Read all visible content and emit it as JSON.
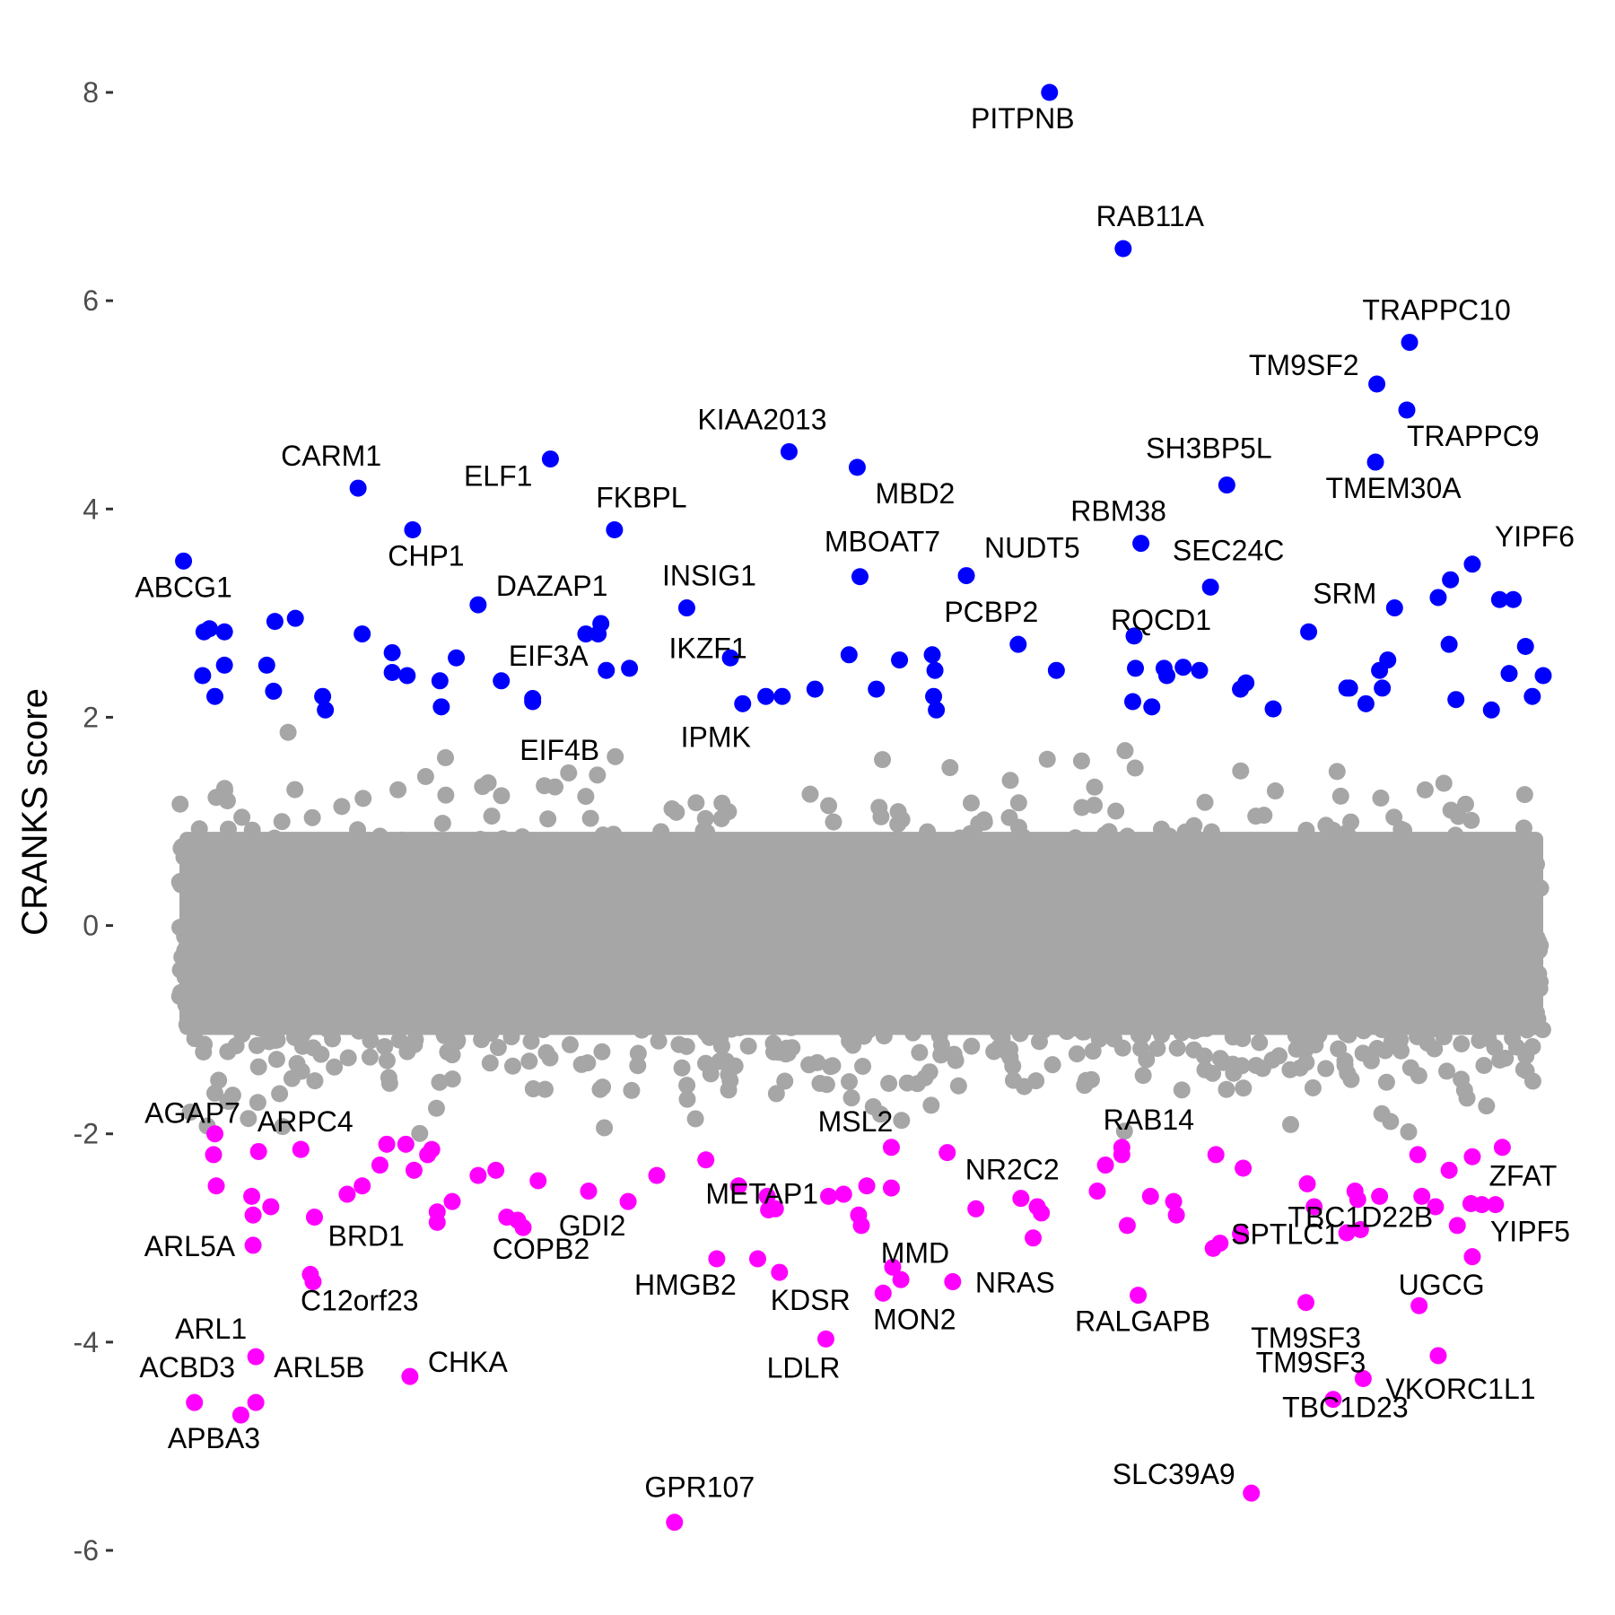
{
  "chart_data": {
    "type": "scatter",
    "ylabel": "CRANKS score",
    "xlabel": "",
    "ylim": [
      -6.3,
      8.4
    ],
    "xlim": [
      0,
      1000
    ],
    "y_ticks": [
      {
        "value": 8,
        "label": "8"
      },
      {
        "value": 6,
        "label": "6"
      },
      {
        "value": 4,
        "label": "4"
      },
      {
        "value": 2,
        "label": "2"
      },
      {
        "value": 0,
        "label": "0"
      },
      {
        "value": -2,
        "label": "-2"
      },
      {
        "value": -4,
        "label": "-4"
      },
      {
        "value": -6,
        "label": "-6"
      }
    ],
    "grid": false,
    "colors": {
      "background_points": "#a6a6a6",
      "positive_hits": "#0000ff",
      "negative_hits": "#ff00ff"
    },
    "labeled_points": [
      {
        "label": "PITPNB",
        "x": 638,
        "y": 8.0,
        "group": "positive"
      },
      {
        "label": "RAB11A",
        "x": 692,
        "y": 6.5,
        "group": "positive"
      },
      {
        "label": "TRAPPC10",
        "x": 902,
        "y": 5.6,
        "group": "positive"
      },
      {
        "label": "TM9SF2",
        "x": 878,
        "y": 5.2,
        "group": "positive"
      },
      {
        "label": "TRAPPC9",
        "x": 900,
        "y": 4.95,
        "group": "positive"
      },
      {
        "label": "TMEM30A",
        "x": 877,
        "y": 4.45,
        "group": "positive"
      },
      {
        "label": "SH3BP5L",
        "x": 768,
        "y": 4.23,
        "group": "positive"
      },
      {
        "label": "KIAA2013",
        "x": 447,
        "y": 4.55,
        "group": "positive"
      },
      {
        "label": "ELF1",
        "x": 272,
        "y": 4.48,
        "group": "positive"
      },
      {
        "label": "CARM1",
        "x": 131,
        "y": 4.2,
        "group": "positive"
      },
      {
        "label": "MBD2",
        "x": 497,
        "y": 4.4,
        "group": "positive"
      },
      {
        "label": "FKBPL",
        "x": 319,
        "y": 3.8,
        "group": "positive"
      },
      {
        "label": "CHP1",
        "x": 171,
        "y": 3.8,
        "group": "positive"
      },
      {
        "label": "RBM38",
        "x": 705,
        "y": 3.67,
        "group": "positive"
      },
      {
        "label": "ABCG1",
        "x": 3,
        "y": 3.5,
        "group": "positive"
      },
      {
        "label": "YIPF6",
        "x": 948,
        "y": 3.47,
        "group": "positive"
      },
      {
        "label": "NUDT5",
        "x": 577,
        "y": 3.36,
        "group": "positive"
      },
      {
        "label": "MBOAT7",
        "x": 499,
        "y": 3.35,
        "group": "positive"
      },
      {
        "label": "SEC24C",
        "x": 756,
        "y": 3.25,
        "group": "positive"
      },
      {
        "label": "DAZAP1",
        "x": 219,
        "y": 3.08,
        "group": "positive"
      },
      {
        "label": "INSIG1",
        "x": 372,
        "y": 3.05,
        "group": "positive"
      },
      {
        "label": "SRM",
        "x": 891,
        "y": 3.05,
        "group": "positive"
      },
      {
        "label": "PCBP2",
        "x": 615,
        "y": 2.7,
        "group": "positive"
      },
      {
        "label": "RQCD1",
        "x": 700,
        "y": 2.78,
        "group": "positive"
      },
      {
        "label": "IKZF1",
        "x": 404,
        "y": 2.57,
        "group": "positive"
      },
      {
        "label": "EIF3A",
        "x": 313,
        "y": 2.45,
        "group": "positive"
      },
      {
        "label": "EIF4B",
        "x": 259,
        "y": 2.15,
        "group": "positive"
      },
      {
        "label": "IPMK",
        "x": 413,
        "y": 2.13,
        "group": "positive"
      },
      {
        "label": "AGAP7",
        "x": 26,
        "y": -2.0,
        "group": "negative"
      },
      {
        "label": "ARPC4",
        "x": 89,
        "y": -2.15,
        "group": "negative"
      },
      {
        "label": "MSL2",
        "x": 522,
        "y": -2.13,
        "group": "negative"
      },
      {
        "label": "RAB14",
        "x": 691,
        "y": -2.13,
        "group": "negative"
      },
      {
        "label": "NR2C2",
        "x": 563,
        "y": -2.18,
        "group": "negative"
      },
      {
        "label": "ZFAT",
        "x": 947,
        "y": -2.67,
        "group": "negative"
      },
      {
        "label": "YIPF5",
        "x": 948,
        "y": -3.18,
        "group": "negative"
      },
      {
        "label": "TBC1D22B",
        "x": 866,
        "y": -2.92,
        "group": "negative"
      },
      {
        "label": "ARL5A",
        "x": 54,
        "y": -3.07,
        "group": "negative"
      },
      {
        "label": "BRD1",
        "x": 99,
        "y": -2.8,
        "group": "negative"
      },
      {
        "label": "GDI2",
        "x": 329,
        "y": -2.65,
        "group": "negative"
      },
      {
        "label": "METAP1",
        "x": 437,
        "y": -2.72,
        "group": "negative"
      },
      {
        "label": "MMD",
        "x": 523,
        "y": -3.28,
        "group": "negative"
      },
      {
        "label": "COPB2",
        "x": 252,
        "y": -2.9,
        "group": "negative"
      },
      {
        "label": "C12orf23",
        "x": 98,
        "y": -3.42,
        "group": "negative"
      },
      {
        "label": "HMGB2",
        "x": 394,
        "y": -3.2,
        "group": "negative"
      },
      {
        "label": "KDSR",
        "x": 440,
        "y": -3.33,
        "group": "negative"
      },
      {
        "label": "NRAS",
        "x": 567,
        "y": -3.42,
        "group": "negative"
      },
      {
        "label": "SPTLC1",
        "x": 758,
        "y": -3.1,
        "group": "negative"
      },
      {
        "label": "UGCG",
        "x": 909,
        "y": -3.65,
        "group": "negative"
      },
      {
        "label": "RALGAPB",
        "x": 703,
        "y": -3.55,
        "group": "negative"
      },
      {
        "label": "MON2",
        "x": 516,
        "y": -3.53,
        "group": "negative"
      },
      {
        "label": "TM9SF3",
        "x": 826,
        "y": -3.62,
        "group": "negative"
      },
      {
        "label": "ARL1",
        "x": 56,
        "y": -4.14,
        "group": "negative"
      },
      {
        "label": "LDLR",
        "x": 474,
        "y": -3.97,
        "group": "negative"
      },
      {
        "label": "ARL5B",
        "x": 56,
        "y": -4.58,
        "group": "negative"
      },
      {
        "label": "CHKA",
        "x": 169,
        "y": -4.33,
        "group": "negative"
      },
      {
        "label": "VKORC1L1",
        "x": 923,
        "y": -4.13,
        "group": "negative"
      },
      {
        "label": "ACBD3",
        "x": 11,
        "y": -4.58,
        "group": "negative"
      },
      {
        "label": "TBC1D23",
        "x": 868,
        "y": -4.35,
        "group": "negative"
      },
      {
        "label": "APBA3",
        "x": 45,
        "y": -4.7,
        "group": "negative"
      },
      {
        "label": "TM9SF3",
        "x": 846,
        "y": -4.55,
        "group": "negative"
      },
      {
        "label": "SLC39A9",
        "x": 786,
        "y": -5.45,
        "group": "negative"
      },
      {
        "label": "GPR107",
        "x": 363,
        "y": -5.73,
        "group": "negative"
      }
    ],
    "unlabeled_hits": {
      "positive": [
        [
          18,
          2.82
        ],
        [
          22,
          2.85
        ],
        [
          17,
          2.4
        ],
        [
          26,
          2.2
        ],
        [
          33,
          2.5
        ],
        [
          33,
          2.82
        ],
        [
          64,
          2.5
        ],
        [
          69,
          2.25
        ],
        [
          70,
          2.92
        ],
        [
          85,
          2.95
        ],
        [
          105,
          2.2
        ],
        [
          107,
          2.07
        ],
        [
          134,
          2.8
        ],
        [
          156,
          2.62
        ],
        [
          156,
          2.43
        ],
        [
          167,
          2.4
        ],
        [
          191,
          2.35
        ],
        [
          192,
          2.1
        ],
        [
          203,
          2.57
        ],
        [
          236,
          2.35
        ],
        [
          259,
          2.18
        ],
        [
          298,
          2.8
        ],
        [
          309,
          2.9
        ],
        [
          307,
          2.8
        ],
        [
          330,
          2.47
        ],
        [
          430,
          2.2
        ],
        [
          442,
          2.2
        ],
        [
          466,
          2.27
        ],
        [
          491,
          2.6
        ],
        [
          511,
          2.27
        ],
        [
          528,
          2.55
        ],
        [
          553,
          2.2
        ],
        [
          552,
          2.6
        ],
        [
          554,
          2.45
        ],
        [
          555,
          2.07
        ],
        [
          643,
          2.45
        ],
        [
          699,
          2.15
        ],
        [
          701,
          2.47
        ],
        [
          713,
          2.1
        ],
        [
          722,
          2.47
        ],
        [
          724,
          2.4
        ],
        [
          736,
          2.48
        ],
        [
          748,
          2.45
        ],
        [
          778,
          2.27
        ],
        [
          782,
          2.33
        ],
        [
          802,
          2.08
        ],
        [
          828,
          2.82
        ],
        [
          856,
          2.28
        ],
        [
          858,
          2.28
        ],
        [
          870,
          2.13
        ],
        [
          880,
          2.45
        ],
        [
          886,
          2.55
        ],
        [
          882,
          2.28
        ],
        [
          923,
          3.15
        ],
        [
          932,
          3.32
        ],
        [
          931,
          2.7
        ],
        [
          936,
          2.17
        ],
        [
          962,
          2.07
        ],
        [
          968,
          3.13
        ],
        [
          978,
          3.13
        ],
        [
          987,
          2.68
        ],
        [
          975,
          2.42
        ],
        [
          992,
          2.2
        ],
        [
          1000,
          2.4
        ]
      ],
      "negative": [
        [
          25,
          -2.2
        ],
        [
          27,
          -2.5
        ],
        [
          53,
          -2.6
        ],
        [
          54,
          -2.78
        ],
        [
          58,
          -2.17
        ],
        [
          67,
          -2.7
        ],
        [
          89,
          -2.15
        ],
        [
          96,
          -3.35
        ],
        [
          123,
          -2.58
        ],
        [
          134,
          -2.5
        ],
        [
          147,
          -2.3
        ],
        [
          152,
          -2.1
        ],
        [
          166,
          -2.1
        ],
        [
          172,
          -2.35
        ],
        [
          182,
          -2.2
        ],
        [
          185,
          -2.15
        ],
        [
          189,
          -2.75
        ],
        [
          189,
          -2.85
        ],
        [
          200,
          -2.65
        ],
        [
          219,
          -2.4
        ],
        [
          232,
          -2.35
        ],
        [
          240,
          -2.8
        ],
        [
          248,
          -2.83
        ],
        [
          263,
          -2.45
        ],
        [
          300,
          -2.55
        ],
        [
          350,
          -2.4
        ],
        [
          386,
          -2.25
        ],
        [
          410,
          -2.5
        ],
        [
          424,
          -3.2
        ],
        [
          431,
          -2.6
        ],
        [
          432,
          -2.73
        ],
        [
          476,
          -2.6
        ],
        [
          487,
          -2.58
        ],
        [
          498,
          -2.78
        ],
        [
          500,
          -2.88
        ],
        [
          504,
          -2.5
        ],
        [
          522,
          -2.52
        ],
        [
          529,
          -3.4
        ],
        [
          584,
          -2.72
        ],
        [
          617,
          -2.62
        ],
        [
          626,
          -3.0
        ],
        [
          629,
          -2.7
        ],
        [
          632,
          -2.76
        ],
        [
          673,
          -2.55
        ],
        [
          679,
          -2.3
        ],
        [
          691,
          -2.2
        ],
        [
          695,
          -2.88
        ],
        [
          712,
          -2.6
        ],
        [
          729,
          -2.65
        ],
        [
          731,
          -2.78
        ],
        [
          760,
          -2.2
        ],
        [
          763,
          -3.05
        ],
        [
          778,
          -2.96
        ],
        [
          780,
          -2.33
        ],
        [
          827,
          -2.48
        ],
        [
          832,
          -2.7
        ],
        [
          856,
          -2.95
        ],
        [
          862,
          -2.55
        ],
        [
          864,
          -2.63
        ],
        [
          880,
          -2.6
        ],
        [
          908,
          -2.2
        ],
        [
          911,
          -2.6
        ],
        [
          921,
          -2.7
        ],
        [
          931,
          -2.35
        ],
        [
          937,
          -2.88
        ],
        [
          948,
          -2.22
        ],
        [
          955,
          -2.68
        ],
        [
          965,
          -2.68
        ],
        [
          970,
          -2.13
        ]
      ]
    },
    "background_distribution": {
      "n_points": 20000,
      "center": -0.2,
      "spread": 0.5,
      "range": [
        -2.0,
        2.0
      ]
    }
  }
}
